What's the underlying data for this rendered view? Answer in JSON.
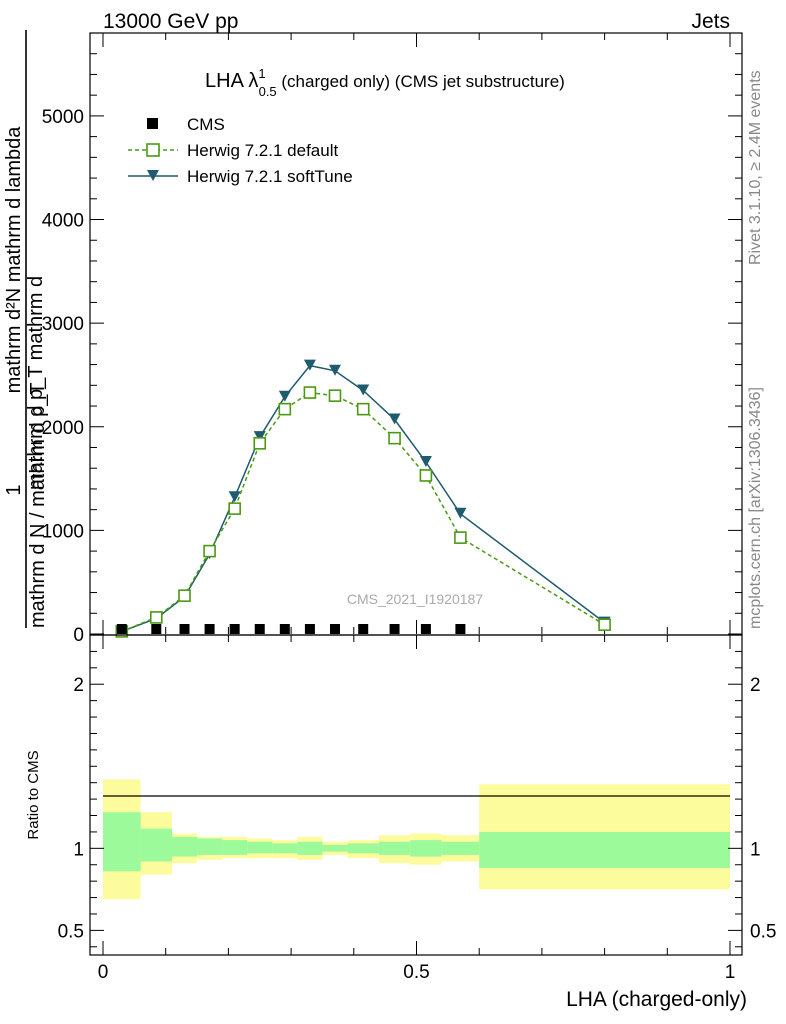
{
  "header": {
    "left": "13000 GeV pp",
    "right": "Jets"
  },
  "side": {
    "rivet": "Rivet 3.1.10, ≥ 2.4M events",
    "mcplots": "mcplots.cern.ch [arXiv:1306.3436]"
  },
  "watermark": "CMS_2021_I1920187",
  "colors": {
    "default": "#4a9a12",
    "soft": "#1f5a6e",
    "band_inner": "#9cfa9a",
    "band_outer": "#fdfc9c",
    "data": "#000000"
  },
  "chart_data": [
    {
      "type": "line",
      "title": {
        "main": "LHA λ",
        "sup": "1",
        "sub": "0.5",
        "rest": " (charged only) (CMS jet substructure)"
      },
      "ylabel": {
        "numer_one": "1",
        "denom_full": "mathrm d N / mathrm d p_T",
        "numer_frac": "mathrm d²N",
        "denom_frac": "mathrm d p_T mathrm d lambda",
        "text_lines": [
          "mathrm d N / mathrm d p_T",
          "mathrm d p_T mathrm d",
          "mathrm d²N mathrm d lambda"
        ]
      },
      "xlim": [
        0,
        1
      ],
      "ylim": [
        0,
        5800
      ],
      "yticks": [
        0,
        1000,
        2000,
        3000,
        4000,
        5000
      ],
      "ytick_labels": [
        "0",
        "1000",
        "2000",
        "3000",
        "4000",
        "5000"
      ],
      "legend": [
        {
          "key": "cms",
          "label": "CMS"
        },
        {
          "key": "default",
          "label": "Herwig 7.2.1 default"
        },
        {
          "key": "soft",
          "label": "Herwig 7.2.1 softTune"
        }
      ],
      "series": [
        {
          "name": "CMS",
          "x": [
            0.03,
            0.085,
            0.13,
            0.17,
            0.21,
            0.25,
            0.29,
            0.33,
            0.37,
            0.415,
            0.465,
            0.515,
            0.57
          ],
          "values": [
            5,
            5,
            5,
            5,
            5,
            5,
            5,
            5,
            5,
            5,
            5,
            5,
            5
          ]
        },
        {
          "name": "Herwig 7.2.1 default",
          "x": [
            0.03,
            0.085,
            0.13,
            0.17,
            0.21,
            0.25,
            0.29,
            0.33,
            0.37,
            0.415,
            0.465,
            0.515,
            0.57,
            0.8
          ],
          "values": [
            25,
            160,
            370,
            800,
            1210,
            1840,
            2170,
            2330,
            2300,
            2170,
            1890,
            1530,
            930,
            90
          ]
        },
        {
          "name": "Herwig 7.2.1 softTune",
          "x": [
            0.03,
            0.085,
            0.13,
            0.17,
            0.21,
            0.25,
            0.29,
            0.33,
            0.37,
            0.415,
            0.465,
            0.515,
            0.57,
            0.8
          ],
          "values": [
            25,
            150,
            360,
            770,
            1320,
            1900,
            2290,
            2590,
            2540,
            2350,
            2070,
            1660,
            1160,
            110
          ]
        }
      ]
    },
    {
      "type": "area",
      "ylabel": "Ratio to CMS",
      "xlabel": "LHA (charged-only)",
      "xlim": [
        0,
        1
      ],
      "ylim": [
        0.35,
        2.3
      ],
      "yticks": [
        0.5,
        1,
        2
      ],
      "ytick_labels": [
        "0.5",
        "1",
        "2"
      ],
      "xticks": [
        0,
        0.5,
        1
      ],
      "xtick_labels": [
        "0",
        "0.5",
        "1"
      ],
      "bins": [
        {
          "x0": 0.0,
          "x1": 0.06,
          "inner": [
            0.86,
            1.22
          ],
          "outer": [
            0.69,
            1.42
          ]
        },
        {
          "x0": 0.06,
          "x1": 0.11,
          "inner": [
            0.92,
            1.12
          ],
          "outer": [
            0.84,
            1.22
          ]
        },
        {
          "x0": 0.11,
          "x1": 0.15,
          "inner": [
            0.95,
            1.07
          ],
          "outer": [
            0.91,
            1.09
          ]
        },
        {
          "x0": 0.15,
          "x1": 0.19,
          "inner": [
            0.96,
            1.06
          ],
          "outer": [
            0.93,
            1.07
          ]
        },
        {
          "x0": 0.19,
          "x1": 0.23,
          "inner": [
            0.96,
            1.05
          ],
          "outer": [
            0.94,
            1.07
          ]
        },
        {
          "x0": 0.23,
          "x1": 0.27,
          "inner": [
            0.97,
            1.04
          ],
          "outer": [
            0.94,
            1.06
          ]
        },
        {
          "x0": 0.27,
          "x1": 0.31,
          "inner": [
            0.97,
            1.03
          ],
          "outer": [
            0.94,
            1.05
          ]
        },
        {
          "x0": 0.31,
          "x1": 0.35,
          "inner": [
            0.96,
            1.04
          ],
          "outer": [
            0.93,
            1.07
          ]
        },
        {
          "x0": 0.35,
          "x1": 0.39,
          "inner": [
            0.98,
            1.02
          ],
          "outer": [
            0.96,
            1.04
          ]
        },
        {
          "x0": 0.39,
          "x1": 0.44,
          "inner": [
            0.97,
            1.03
          ],
          "outer": [
            0.94,
            1.05
          ]
        },
        {
          "x0": 0.44,
          "x1": 0.49,
          "inner": [
            0.96,
            1.04
          ],
          "outer": [
            0.91,
            1.08
          ]
        },
        {
          "x0": 0.49,
          "x1": 0.54,
          "inner": [
            0.95,
            1.05
          ],
          "outer": [
            0.9,
            1.09
          ]
        },
        {
          "x0": 0.54,
          "x1": 0.6,
          "inner": [
            0.96,
            1.04
          ],
          "outer": [
            0.92,
            1.08
          ]
        },
        {
          "x0": 0.6,
          "x1": 1.0,
          "inner": [
            0.88,
            1.1
          ],
          "outer": [
            0.75,
            1.39
          ]
        }
      ]
    }
  ]
}
